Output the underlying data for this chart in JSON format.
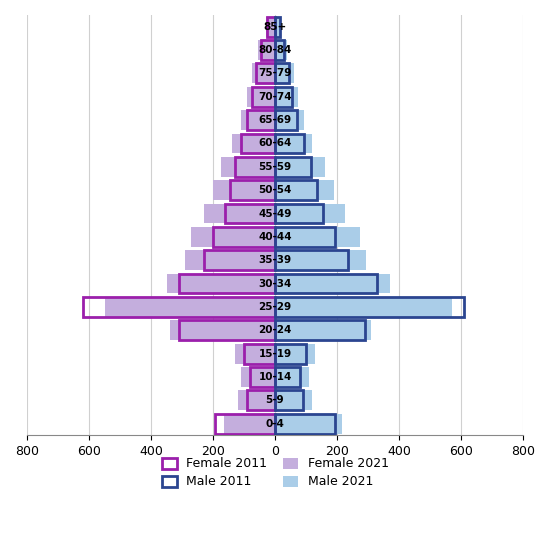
{
  "age_groups": [
    "0-4",
    "5-9",
    "10-14",
    "15-19",
    "20-24",
    "25-29",
    "30-34",
    "35-39",
    "40-44",
    "45-49",
    "50-54",
    "55-59",
    "60-64",
    "65-69",
    "70-74",
    "75-79",
    "80-84",
    "85+"
  ],
  "female_2021": [
    165,
    120,
    110,
    130,
    340,
    550,
    350,
    290,
    270,
    230,
    200,
    175,
    140,
    110,
    90,
    75,
    55,
    30
  ],
  "female_2011": [
    195,
    90,
    80,
    100,
    310,
    620,
    310,
    230,
    200,
    160,
    145,
    130,
    110,
    90,
    75,
    60,
    45,
    25
  ],
  "male_2021": [
    215,
    120,
    110,
    130,
    310,
    570,
    370,
    295,
    275,
    225,
    190,
    160,
    120,
    95,
    75,
    60,
    40,
    20
  ],
  "male_2011": [
    195,
    90,
    80,
    100,
    290,
    610,
    330,
    235,
    195,
    155,
    135,
    115,
    95,
    70,
    55,
    45,
    30,
    15
  ],
  "female_2011_color": "#9B1FAB",
  "female_2021_color": "#C4AEDD",
  "male_2011_color": "#2B4590",
  "male_2021_color": "#AACDE8",
  "xlim": 800,
  "xticks": [
    -800,
    -600,
    -400,
    -200,
    0,
    200,
    400,
    600,
    800
  ],
  "xticklabels": [
    "800",
    "600",
    "400",
    "200",
    "0",
    "200",
    "400",
    "600",
    "800"
  ],
  "bar_height": 0.85,
  "figsize": [
    5.5,
    5.59
  ],
  "dpi": 100
}
